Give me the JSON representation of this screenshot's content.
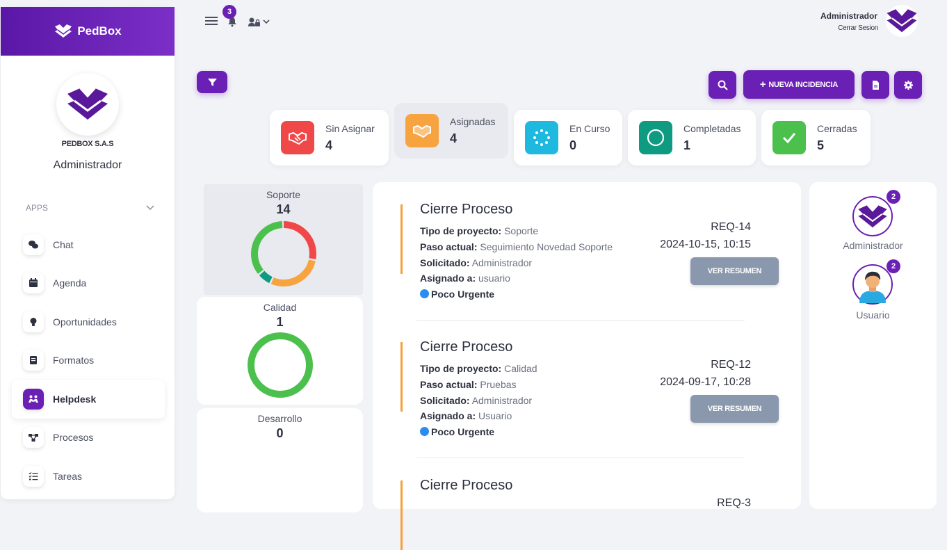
{
  "brand": {
    "name": "PedBox"
  },
  "sidebar": {
    "company": "PEDBOX S.A.S",
    "role": "Administrador",
    "section_label": "APPS",
    "items": [
      {
        "label": "Chat",
        "icon": "chat-icon"
      },
      {
        "label": "Agenda",
        "icon": "calendar-icon"
      },
      {
        "label": "Oportunidades",
        "icon": "lightbulb-icon"
      },
      {
        "label": "Formatos",
        "icon": "book-icon"
      },
      {
        "label": "Helpdesk",
        "icon": "helpdesk-icon",
        "active": true
      },
      {
        "label": "Procesos",
        "icon": "process-icon"
      },
      {
        "label": "Tareas",
        "icon": "tasks-icon"
      }
    ]
  },
  "topbar": {
    "notifications_count": "3",
    "user_name": "Administrador",
    "logout_label": "Cerrar Sesion"
  },
  "toolbar": {
    "new_ticket_label": "NUEVA INCIDENCIA"
  },
  "stats": [
    {
      "label": "Sin Asignar",
      "value": "4",
      "color": "#f04848"
    },
    {
      "label": "Asignadas",
      "value": "4",
      "color": "#f7a440"
    },
    {
      "label": "En Curso",
      "value": "0",
      "color": "#1fb9e0"
    },
    {
      "label": "Completadas",
      "value": "1",
      "color": "#0f9a82"
    },
    {
      "label": "Cerradas",
      "value": "5",
      "color": "#4cc04c"
    }
  ],
  "categories": [
    {
      "name": "Soporte",
      "count": "14",
      "segments": [
        {
          "color": "#f04848",
          "fraction": 0.286
        },
        {
          "color": "#f7a440",
          "fraction": 0.286
        },
        {
          "color": "#0f9a82",
          "fraction": 0.071
        },
        {
          "color": "#4cc04c",
          "fraction": 0.357
        }
      ]
    },
    {
      "name": "Calidad",
      "count": "1",
      "segments": [
        {
          "color": "#4cc04c",
          "fraction": 1.0
        }
      ]
    },
    {
      "name": "Desarrollo",
      "count": "0",
      "segments": []
    }
  ],
  "tickets": [
    {
      "title": "Cierre Proceso",
      "project_label": "Tipo de proyecto:",
      "project": "Soporte",
      "step_label": "Paso actual:",
      "step": "Seguimiento Novedad Soporte",
      "requested_label": "Solicitado:",
      "requested": "Administrador",
      "assigned_label": "Asignado a:",
      "assigned": "usuario",
      "priority": "Poco Urgente",
      "req": "REQ-14",
      "date": "2024-10-15, 10:15",
      "button": "VER RESUMEN"
    },
    {
      "title": "Cierre Proceso",
      "project_label": "Tipo de proyecto:",
      "project": "Calidad",
      "step_label": "Paso actual:",
      "step": "Pruebas",
      "requested_label": "Solicitado:",
      "requested": "Administrador",
      "assigned_label": "Asignado a:",
      "assigned": "Usuario",
      "priority": "Poco Urgente",
      "req": "REQ-12",
      "date": "2024-09-17, 10:28",
      "button": "VER RESUMEN"
    },
    {
      "title": "Cierre Proceso",
      "req": "REQ-3"
    }
  ],
  "users": [
    {
      "name": "Administrador",
      "badge": "2"
    },
    {
      "name": "Usuario",
      "badge": "2"
    }
  ]
}
